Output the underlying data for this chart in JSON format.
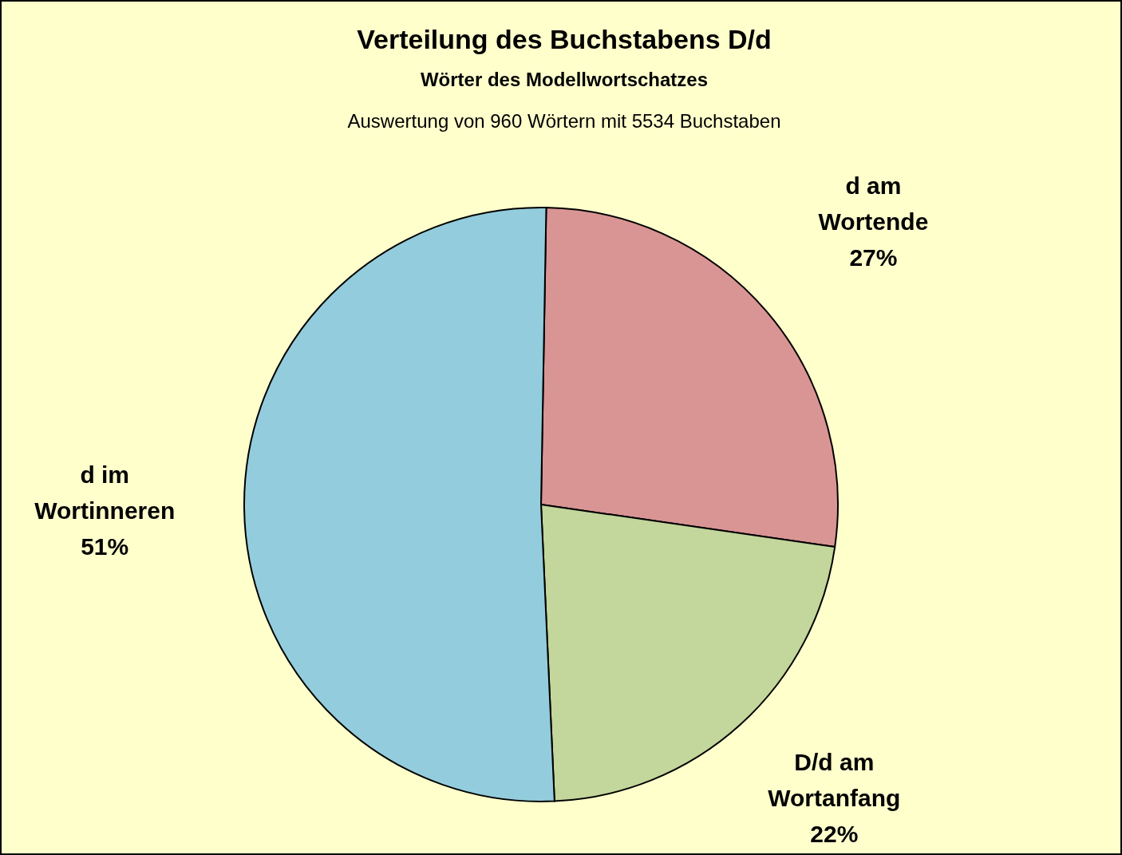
{
  "chart_data": {
    "type": "pie",
    "title": "Verteilung des Buchstabens D/d",
    "subtitle": "Wörter des Modellwortschatzes",
    "annotations": [
      "Auswertung von 960 Wörtern mit 5534 Buchstaben"
    ],
    "categories": [
      "d am Wortende",
      "D/d am Wortanfang",
      "d im Wortinneren"
    ],
    "values": [
      27,
      22,
      51
    ],
    "colors": [
      "#d99594",
      "#c3d69b",
      "#93cddd"
    ],
    "value_labels": [
      "27%",
      "22%",
      "51%"
    ]
  }
}
